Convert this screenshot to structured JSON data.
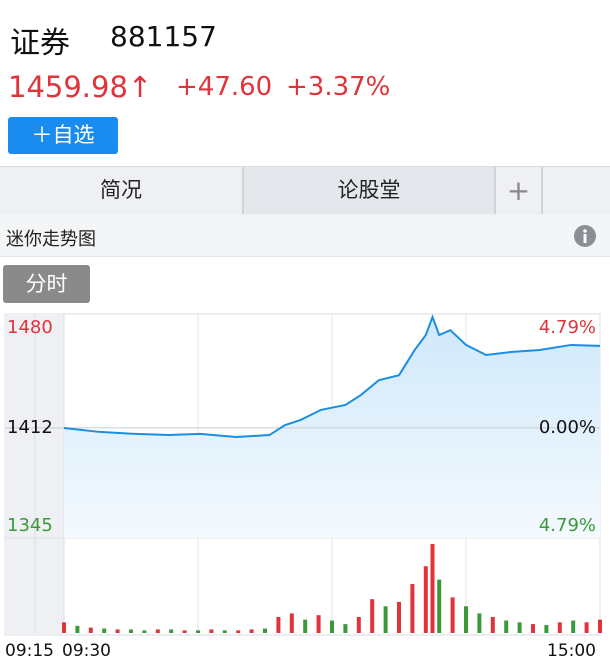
{
  "header": {
    "name": "证券",
    "code": "881157",
    "price": "1459.98↑",
    "change": "+47.60",
    "change_pct": "+3.37%",
    "button": "＋自选"
  },
  "tabs": [
    "简况",
    "论股堂",
    "+"
  ],
  "section_title": "迷你走势图",
  "chart_tab": "分时",
  "chart": {
    "type": "line",
    "color": "#1a8fe0",
    "ylim": [
      1345,
      1480
    ],
    "yticks": [
      1345,
      1412,
      1480
    ],
    "ytick_colors": [
      "#3a9a3a",
      "#111111",
      "#e0333a"
    ],
    "right_labels": [
      "4.79%",
      "0.00%",
      "4.79%"
    ],
    "auction_label": "09:15",
    "xlim": [
      0,
      240
    ],
    "xticks": [
      {
        "value": 0,
        "label": "09:30"
      },
      {
        "value": 240,
        "label": "15:00"
      }
    ],
    "xgrid": [
      60,
      120,
      180
    ],
    "x": [
      0,
      16,
      32,
      47,
      61,
      77,
      92,
      99,
      106,
      115,
      126,
      133,
      141,
      150,
      157,
      162,
      165,
      168,
      173,
      180,
      189,
      200,
      213,
      227,
      240
    ],
    "values": [
      1411.9,
      1409.5,
      1408.3,
      1407.6,
      1408.3,
      1406.4,
      1407.6,
      1413.7,
      1416.8,
      1422.9,
      1425.9,
      1432,
      1441,
      1444,
      1459.3,
      1468.4,
      1479.4,
      1468.4,
      1471.4,
      1462.4,
      1456.3,
      1458.1,
      1459.3,
      1462.4,
      1461.8
    ],
    "volume": {
      "vlim": [
        0,
        100
      ],
      "up_color": "#e0333a",
      "down_color": "#3a9a3a",
      "x": [
        0,
        6,
        12,
        18,
        24,
        30,
        36,
        42,
        48,
        54,
        60,
        66,
        72,
        78,
        84,
        90,
        96,
        102,
        108,
        114,
        120,
        126,
        132,
        138,
        144,
        150,
        156,
        162,
        165,
        168,
        174,
        180,
        186,
        192,
        198,
        204,
        210,
        216,
        222,
        228,
        234,
        240
      ],
      "values": [
        12,
        8,
        6,
        5,
        4,
        4,
        3,
        4,
        4,
        3,
        3,
        4,
        3,
        3,
        4,
        5,
        18,
        22,
        15,
        20,
        14,
        10,
        18,
        38,
        30,
        35,
        55,
        75,
        100,
        60,
        40,
        30,
        22,
        18,
        14,
        12,
        10,
        9,
        12,
        14,
        12,
        15
      ],
      "directions": [
        "up",
        "down",
        "up",
        "down",
        "up",
        "down",
        "down",
        "up",
        "down",
        "up",
        "down",
        "up",
        "down",
        "up",
        "up",
        "down",
        "up",
        "up",
        "down",
        "up",
        "down",
        "down",
        "up",
        "up",
        "down",
        "up",
        "up",
        "up",
        "up",
        "down",
        "up",
        "down",
        "down",
        "up",
        "down",
        "down",
        "up",
        "down",
        "up",
        "down",
        "up",
        "up"
      ]
    }
  }
}
